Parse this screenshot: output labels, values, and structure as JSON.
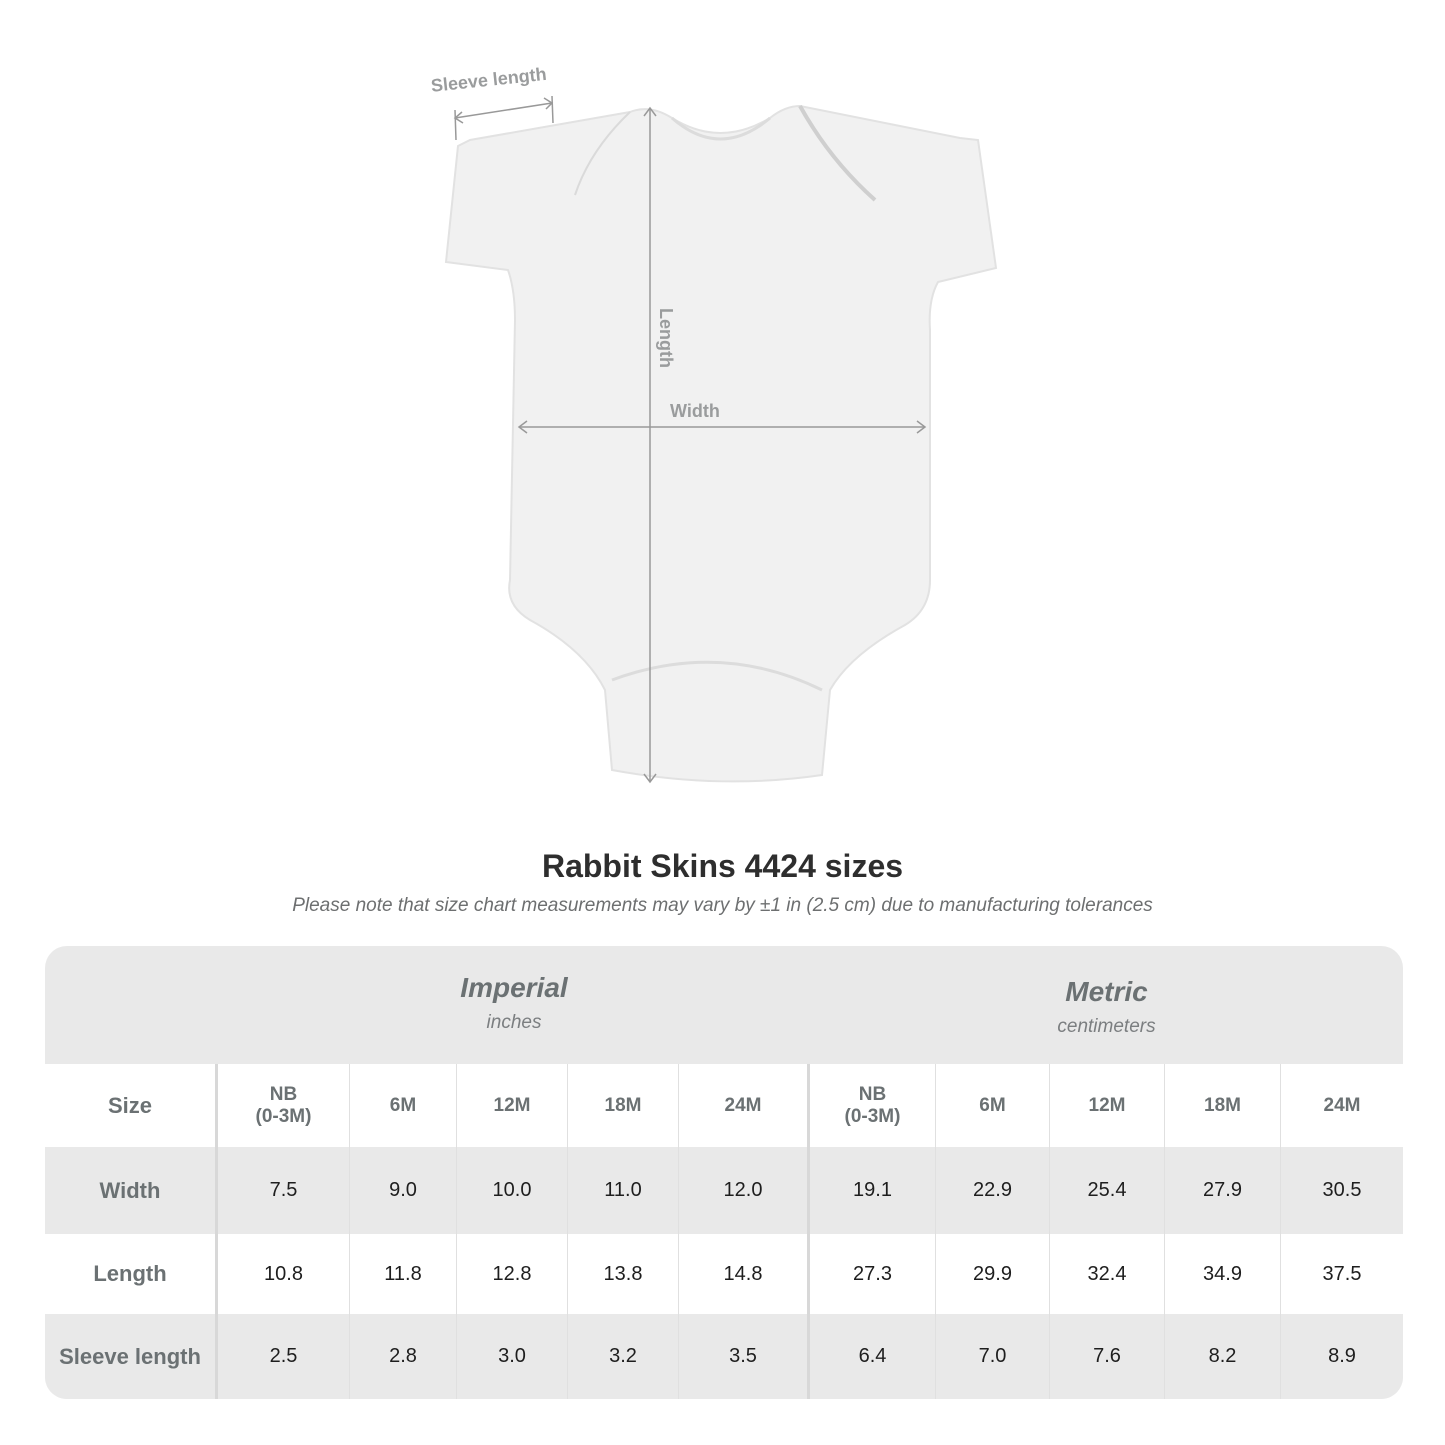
{
  "diagram": {
    "sleeve_label": "Sleeve length",
    "length_label": "Length",
    "width_label": "Width"
  },
  "title": "Rabbit Skins 4424 sizes",
  "subtitle": "Please note that size chart measurements may vary by ±1 in (2.5 cm) due to manufacturing tolerances",
  "table": {
    "imperial": {
      "name": "Imperial",
      "unit": "inches"
    },
    "metric": {
      "name": "Metric",
      "unit": "centimeters"
    },
    "size_label": "Size",
    "sizes": [
      "NB\n(0-3M)",
      "6M",
      "12M",
      "18M",
      "24M"
    ],
    "rows": [
      {
        "label": "Width",
        "imperial": [
          "7.5",
          "9.0",
          "10.0",
          "11.0",
          "12.0"
        ],
        "metric": [
          "19.1",
          "22.9",
          "25.4",
          "27.9",
          "30.5"
        ]
      },
      {
        "label": "Length",
        "imperial": [
          "10.8",
          "11.8",
          "12.8",
          "13.8",
          "14.8"
        ],
        "metric": [
          "27.3",
          "29.9",
          "32.4",
          "34.9",
          "37.5"
        ]
      },
      {
        "label": "Sleeve length",
        "imperial": [
          "2.5",
          "2.8",
          "3.0",
          "3.2",
          "3.5"
        ],
        "metric": [
          "6.4",
          "7.0",
          "7.6",
          "8.2",
          "8.9"
        ]
      }
    ]
  }
}
